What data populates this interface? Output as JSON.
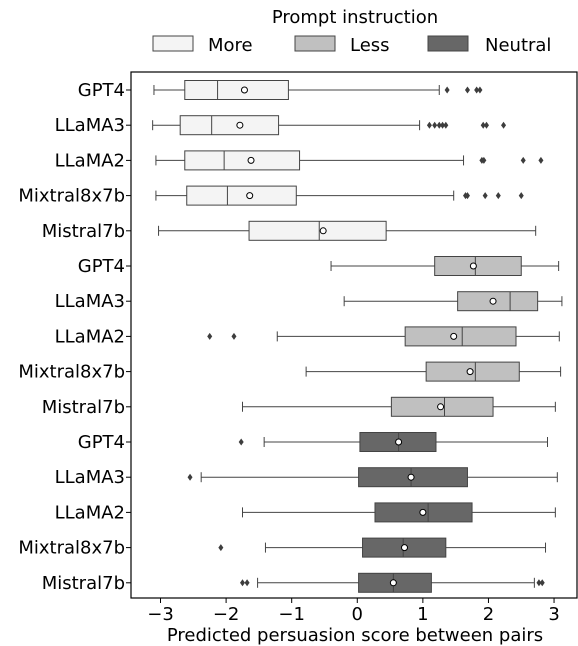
{
  "chart_data": {
    "type": "box",
    "orientation": "horizontal",
    "legend": {
      "title": "Prompt instruction",
      "placement": "top",
      "entries": [
        {
          "label": "More",
          "color": "#f4f4f4"
        },
        {
          "label": "Less",
          "color": "#c0c0c0"
        },
        {
          "label": "Neutral",
          "color": "#676767"
        }
      ]
    },
    "xlabel": "Predicted persuasion score between pairs",
    "xlim": [
      -3.45,
      3.35
    ],
    "xticks": [
      -3,
      -2,
      -1,
      0,
      1,
      2,
      3
    ],
    "xtick_labels": [
      "−3",
      "−2",
      "−1",
      "0",
      "1",
      "2",
      "3"
    ],
    "mean_marker": "white circle",
    "series": [
      {
        "name": "More",
        "color": "#f4f4f4",
        "boxes": [
          {
            "category": "GPT4",
            "whisker_low": -3.1,
            "q1": -2.63,
            "median": -2.13,
            "q3": -1.05,
            "whisker_high": 1.25,
            "mean": -1.72,
            "outliers": [
              1.37,
              1.68,
              1.82,
              1.87
            ]
          },
          {
            "category": "LLaMA3",
            "whisker_low": -3.12,
            "q1": -2.7,
            "median": -2.22,
            "q3": -1.2,
            "whisker_high": 0.95,
            "mean": -1.79,
            "outliers": [
              1.1,
              1.18,
              1.25,
              1.3,
              1.35,
              1.92,
              1.97,
              2.23
            ]
          },
          {
            "category": "LLaMA2",
            "whisker_low": -3.07,
            "q1": -2.63,
            "median": -2.03,
            "q3": -0.88,
            "whisker_high": 1.62,
            "mean": -1.62,
            "outliers": [
              1.9,
              1.93,
              2.53,
              2.8
            ]
          },
          {
            "category": "Mixtral8x7b",
            "whisker_low": -3.07,
            "q1": -2.6,
            "median": -1.98,
            "q3": -0.93,
            "whisker_high": 1.47,
            "mean": -1.64,
            "outliers": [
              1.65,
              1.68,
              1.95,
              2.15,
              2.5
            ]
          },
          {
            "category": "Mistral7b",
            "whisker_low": -3.03,
            "q1": -1.65,
            "median": -0.58,
            "q3": 0.44,
            "whisker_high": 2.72,
            "mean": -0.52,
            "outliers": []
          }
        ]
      },
      {
        "name": "Less",
        "color": "#c0c0c0",
        "boxes": [
          {
            "category": "GPT4",
            "whisker_low": -0.4,
            "q1": 1.18,
            "median": 1.8,
            "q3": 2.5,
            "whisker_high": 3.07,
            "mean": 1.77,
            "outliers": []
          },
          {
            "category": "LLaMA3",
            "whisker_low": -0.2,
            "q1": 1.53,
            "median": 2.33,
            "q3": 2.75,
            "whisker_high": 3.12,
            "mean": 2.07,
            "outliers": []
          },
          {
            "category": "LLaMA2",
            "whisker_low": -1.22,
            "q1": 0.73,
            "median": 1.6,
            "q3": 2.42,
            "whisker_high": 3.08,
            "mean": 1.47,
            "outliers": [
              -2.25,
              -1.88
            ]
          },
          {
            "category": "Mixtral8x7b",
            "whisker_low": -0.78,
            "q1": 1.05,
            "median": 1.8,
            "q3": 2.47,
            "whisker_high": 3.1,
            "mean": 1.72,
            "outliers": []
          },
          {
            "category": "Mistral7b",
            "whisker_low": -1.75,
            "q1": 0.52,
            "median": 1.33,
            "q3": 2.07,
            "whisker_high": 3.02,
            "mean": 1.27,
            "outliers": []
          }
        ]
      },
      {
        "name": "Neutral",
        "color": "#676767",
        "boxes": [
          {
            "category": "GPT4",
            "whisker_low": -1.42,
            "q1": 0.04,
            "median": 0.63,
            "q3": 1.2,
            "whisker_high": 2.9,
            "mean": 0.63,
            "outliers": [
              -1.77
            ]
          },
          {
            "category": "LLaMA3",
            "whisker_low": -2.38,
            "q1": 0.02,
            "median": 0.82,
            "q3": 1.68,
            "whisker_high": 3.05,
            "mean": 0.82,
            "outliers": [
              -2.55
            ]
          },
          {
            "category": "LLaMA2",
            "whisker_low": -1.75,
            "q1": 0.27,
            "median": 1.08,
            "q3": 1.75,
            "whisker_high": 3.02,
            "mean": 1.0,
            "outliers": []
          },
          {
            "category": "Mixtral8x7b",
            "whisker_low": -1.4,
            "q1": 0.08,
            "median": 0.7,
            "q3": 1.35,
            "whisker_high": 2.87,
            "mean": 0.72,
            "outliers": [
              -2.08
            ]
          },
          {
            "category": "Mistral7b",
            "whisker_low": -1.52,
            "q1": 0.02,
            "median": 0.55,
            "q3": 1.13,
            "whisker_high": 2.7,
            "mean": 0.55,
            "outliers": [
              -1.75,
              -1.68,
              2.77,
              2.82
            ]
          }
        ]
      }
    ]
  }
}
